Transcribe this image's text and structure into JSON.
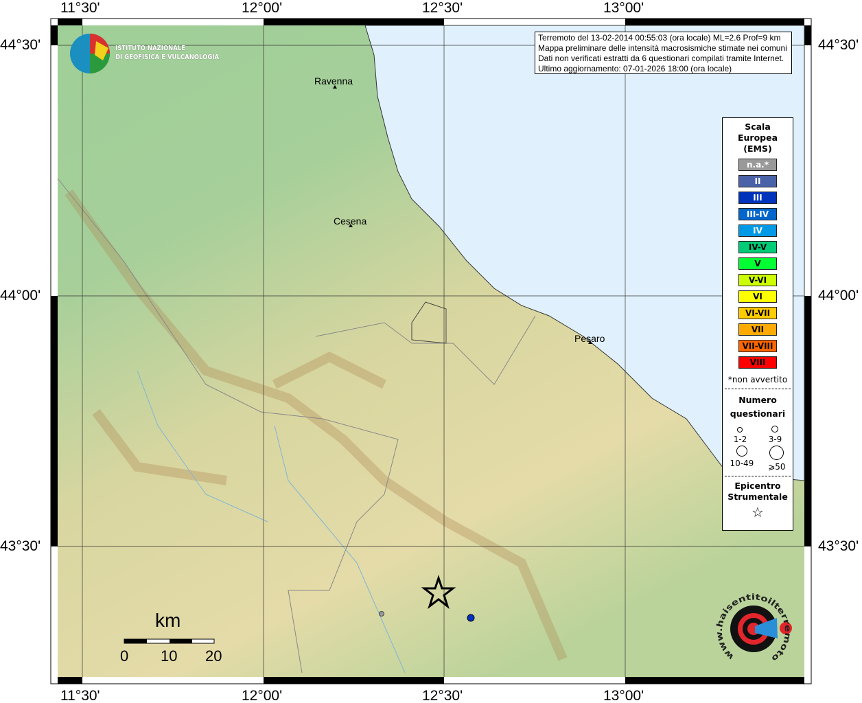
{
  "axes": {
    "lon_ticks": [
      "11°30'",
      "12°00'",
      "12°30'",
      "13°00'"
    ],
    "lat_ticks": [
      "44°30'",
      "44°00'",
      "43°30'"
    ]
  },
  "info": {
    "line1": "Terremoto del 13-02-2014 00:55:03 (ora locale) ML=2.6 Prof=9 km",
    "line2": "Mappa preliminare delle intensità macrosismiche stimate nei comuni",
    "line3": "Dati non verificati estratti da 6 questionari compilati tramite Internet.",
    "line4": "Ultimo aggiornamento: 07-01-2026 18:00 (ora locale)"
  },
  "logo": {
    "line1": "ISTITUTO NAZIONALE",
    "line2": "DI GEOFISICA E VULCANOLOGIA"
  },
  "logo2_text": "www.haisentitoilterremoto.it",
  "cities": [
    {
      "name": "Ravenna"
    },
    {
      "name": "Cesena"
    },
    {
      "name": "Pesaro"
    }
  ],
  "legend": {
    "title": [
      "Scala",
      "Europea",
      "(EMS)"
    ],
    "classes": [
      {
        "label": "n.a.*",
        "color": "#999999",
        "text": "#ffffff"
      },
      {
        "label": "II",
        "color": "#4a62a8",
        "text": "#ffffff"
      },
      {
        "label": "III",
        "color": "#0033bb",
        "text": "#ffffff"
      },
      {
        "label": "III-IV",
        "color": "#0066cc",
        "text": "#ffffff"
      },
      {
        "label": "IV",
        "color": "#0099e6",
        "text": "#ffffff"
      },
      {
        "label": "IV-V",
        "color": "#00cc77",
        "text": "#000000"
      },
      {
        "label": "V",
        "color": "#00ff33",
        "text": "#000000"
      },
      {
        "label": "V-VI",
        "color": "#ccff00",
        "text": "#000000"
      },
      {
        "label": "VI",
        "color": "#ffff00",
        "text": "#000000"
      },
      {
        "label": "VI-VII",
        "color": "#ffcc00",
        "text": "#000000"
      },
      {
        "label": "VII",
        "color": "#ffaa00",
        "text": "#000000"
      },
      {
        "label": "VII-VIII",
        "color": "#ff6600",
        "text": "#000000"
      },
      {
        "label": "VIII",
        "color": "#ff0000",
        "text": "#000000"
      }
    ],
    "note": "*non avvertito",
    "count_title": [
      "Numero",
      "questionari"
    ],
    "counts": [
      "1-2",
      "3-9",
      "10-49",
      "⩾50"
    ],
    "epi_title": [
      "Epicentro",
      "Strumentale"
    ]
  },
  "scale": {
    "unit": "km",
    "labels": [
      "0",
      "10",
      "20"
    ]
  },
  "observations": [
    {
      "class": "n.a.*",
      "color": "#999999"
    },
    {
      "class": "III",
      "color": "#0033bb"
    }
  ]
}
